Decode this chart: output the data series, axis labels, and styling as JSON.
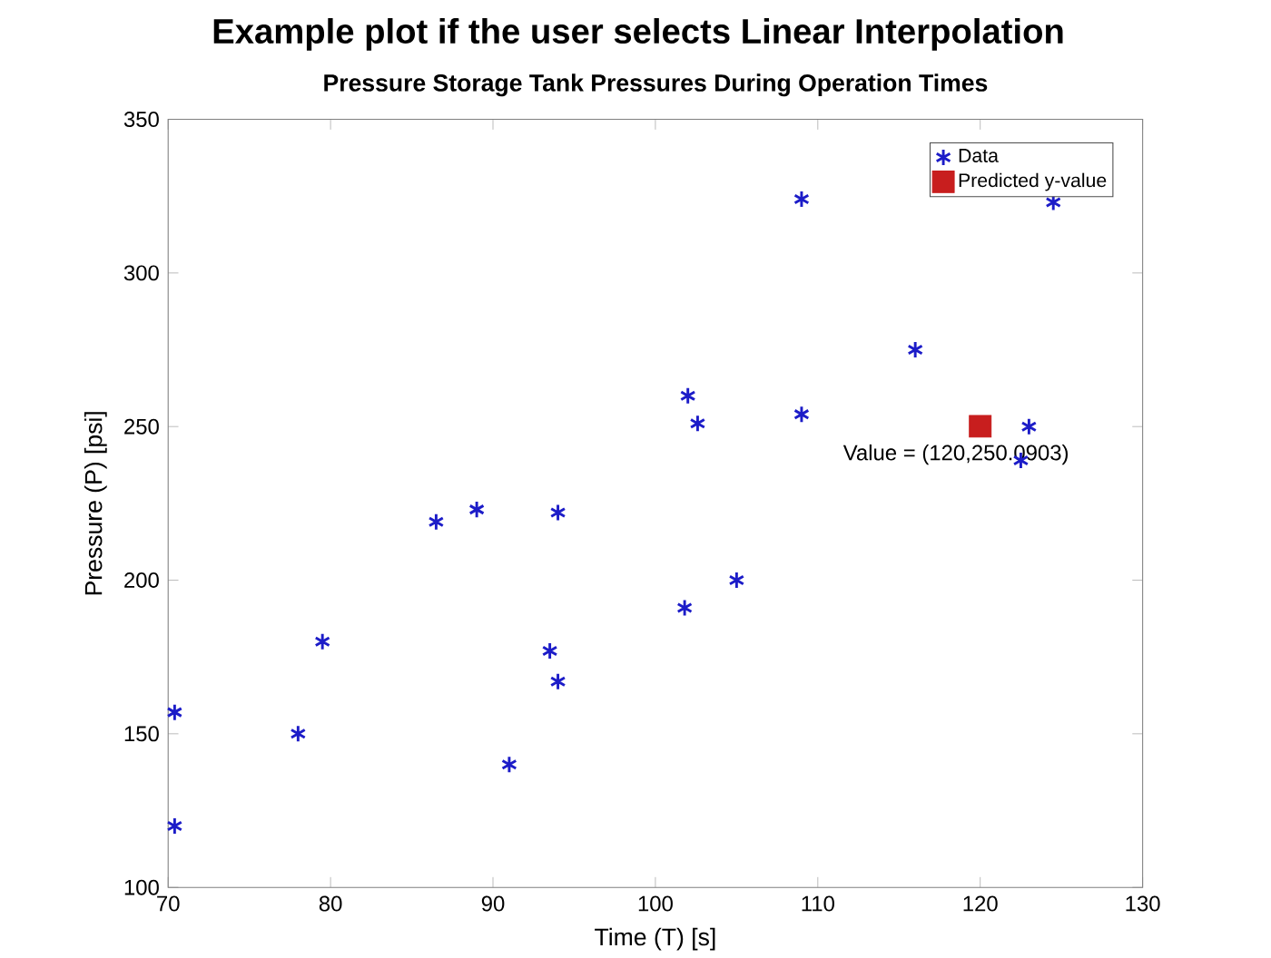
{
  "chart_data": {
    "type": "scatter",
    "title": "Example plot if the user selects Linear Interpolation",
    "subtitle": "Pressure Storage Tank Pressures During Operation Times",
    "xlabel": "Time (T) [s]",
    "ylabel": "Pressure (P) [psi]",
    "xlim": [
      70,
      130
    ],
    "ylim": [
      100,
      350
    ],
    "xticks": [
      70,
      80,
      90,
      100,
      110,
      120,
      130
    ],
    "yticks": [
      100,
      150,
      200,
      250,
      300,
      350
    ],
    "grid": false,
    "legend": "top right",
    "series": [
      {
        "name": "Data",
        "marker": "cross",
        "color": "#1c1cc8",
        "x": [
          70.4,
          70.4,
          78,
          79.5,
          86.5,
          89,
          91,
          93.5,
          94,
          94,
          101.8,
          102,
          102.6,
          105,
          109,
          109,
          116,
          122.5,
          123,
          124.5
        ],
        "values": [
          157,
          120,
          150,
          180,
          219,
          223,
          140,
          177,
          167,
          222,
          191,
          260,
          251,
          200,
          254,
          324,
          275,
          239,
          250,
          323
        ]
      },
      {
        "name": "Predicted y-value",
        "marker": "square",
        "color": "#c81e1e",
        "x": [
          120
        ],
        "values": [
          250.0903
        ]
      }
    ],
    "annotations": [
      {
        "text": "Value = (120,250.0903)",
        "x": 120,
        "y": 250.0903
      }
    ]
  }
}
